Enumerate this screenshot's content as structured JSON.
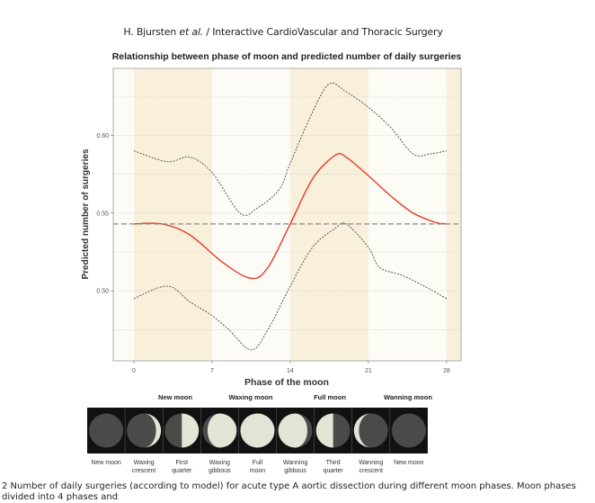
{
  "header": {
    "authors": "H. Bjursten",
    "etal": "et al.",
    "journal": "/ Interactive CardioVascular and Thoracic Surgery"
  },
  "chart_data": {
    "type": "line",
    "title": "Relationship between phase of moon and predicted number of daily surgeries",
    "xlabel": "Phase of the moon",
    "ylabel": "Predicted number of surgeries",
    "xlim": [
      -1.85,
      29.3
    ],
    "ylim": [
      0.455,
      0.643
    ],
    "xticks": [
      0,
      7,
      14,
      21,
      28
    ],
    "yticks": [
      0.5,
      0.55,
      0.6
    ],
    "ytick_labels": [
      "0.50",
      "0.55",
      "0.60"
    ],
    "grid": "horizontal dotted",
    "shaded_bands": [
      [
        0,
        7
      ],
      [
        14,
        21
      ],
      [
        28,
        29.3
      ]
    ],
    "colors": {
      "prediction": "#e8392a",
      "ci": "#333333",
      "mean": "#888888",
      "band": "#f8f0da",
      "background": "#fdfbf5"
    },
    "series": [
      {
        "role": "prediction",
        "style": "solid",
        "x": [
          0,
          2.5,
          5,
          8,
          10.5,
          12,
          14,
          16,
          18,
          19,
          21,
          23,
          25,
          27,
          28
        ],
        "y": [
          0.543,
          0.543,
          0.536,
          0.518,
          0.508,
          0.515,
          0.543,
          0.572,
          0.587,
          0.586,
          0.574,
          0.561,
          0.55,
          0.544,
          0.543
        ]
      },
      {
        "role": "upper-ci",
        "style": "dotted",
        "x": [
          0,
          3,
          5,
          7,
          9.5,
          11,
          13,
          14,
          16,
          17.5,
          19,
          21,
          23,
          25,
          26.5,
          28
        ],
        "y": [
          0.59,
          0.583,
          0.586,
          0.576,
          0.55,
          0.553,
          0.565,
          0.582,
          0.615,
          0.633,
          0.628,
          0.618,
          0.605,
          0.588,
          0.588,
          0.59
        ]
      },
      {
        "role": "lower-ci",
        "style": "dotted",
        "x": [
          0,
          3,
          5,
          7,
          8.5,
          10.5,
          12,
          14,
          16,
          18,
          19,
          21,
          22,
          24,
          26,
          28
        ],
        "y": [
          0.495,
          0.503,
          0.493,
          0.484,
          0.475,
          0.462,
          0.475,
          0.503,
          0.528,
          0.54,
          0.543,
          0.528,
          0.515,
          0.51,
          0.503,
          0.495
        ]
      },
      {
        "role": "mean",
        "style": "dashed",
        "x": [
          -1.85,
          29.3
        ],
        "y": [
          0.543,
          0.543
        ]
      }
    ]
  },
  "moon_groups": [
    "New moon",
    "Waxing moon",
    "Full moon",
    "Wanning moon"
  ],
  "moon_phases": [
    [
      "New moon"
    ],
    [
      "Waxing",
      "crescent"
    ],
    [
      "First",
      "quarter"
    ],
    [
      "Waxing",
      "gibbous"
    ],
    [
      "Full",
      "moon"
    ],
    [
      "Wanning",
      "gibbous"
    ],
    [
      "Third",
      "quarter"
    ],
    [
      "Wanning",
      "crescent"
    ],
    [
      "New moon"
    ]
  ],
  "caption": "2 Number of daily surgeries (according to model) for acute type A aortic dissection during different moon phases. Moon phases divided into 4 phases and"
}
